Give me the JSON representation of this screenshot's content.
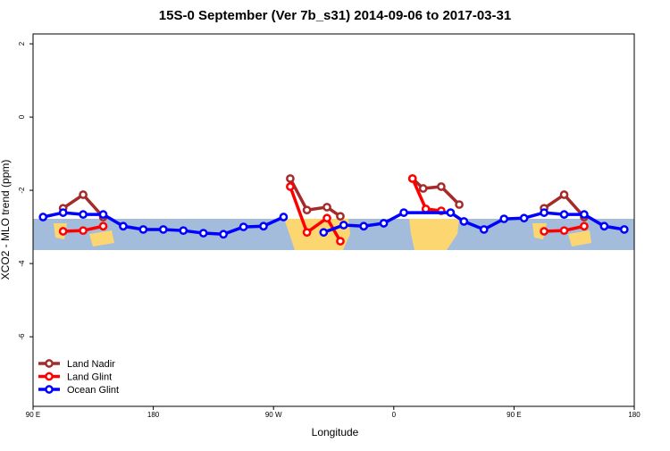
{
  "chart_data": {
    "type": "line",
    "title": "15S-0 September (Ver 7b_s31)   2014-09-06 to 2017-03-31",
    "x_label": "Longitude",
    "y_label": "XCO2 - MLO trend (ppm)",
    "xlim": [
      90,
      540
    ],
    "xticks": [
      {
        "value": 90,
        "label": "90 E"
      },
      180,
      {
        "value": 270,
        "label": "90 W"
      },
      {
        "value": 360,
        "label": "0"
      },
      {
        "value": 450,
        "label": "90 E"
      },
      {
        "value": 540,
        "label": "180"
      }
    ],
    "ylim": [
      -7.9,
      2.27
    ],
    "yticks": [
      2,
      0,
      -2,
      -4,
      -6
    ],
    "legend": "bottom-left",
    "series": [
      {
        "name": "Land Nadir",
        "color": "#a52a2a",
        "x": [
          112.5,
          127.5,
          142.5,
          null,
          282.5,
          295,
          310,
          320,
          null,
          374,
          382,
          395.5,
          409,
          null,
          472.5,
          487.5,
          502.5
        ],
        "values": [
          -2.49,
          -2.12,
          -2.73,
          null,
          -1.68,
          -2.54,
          -2.46,
          -2.71,
          null,
          -1.68,
          -1.95,
          -1.9,
          -2.39,
          null,
          -2.49,
          -2.12,
          -2.73
        ]
      },
      {
        "name": "Land Glint",
        "color": "#ff0000",
        "x": [
          112.5,
          127.5,
          142.5,
          null,
          282.5,
          295,
          310,
          320,
          null,
          374,
          384,
          395.5,
          null,
          472.5,
          487.5,
          502.5
        ],
        "values": [
          -3.12,
          -3.1,
          -2.98,
          null,
          -1.9,
          -3.15,
          -2.76,
          -3.39,
          null,
          -1.68,
          -2.51,
          -2.56,
          null,
          -3.12,
          -3.1,
          -2.98
        ]
      },
      {
        "name": "Ocean Glint",
        "color": "#0000ff",
        "x": [
          97.5,
          112.5,
          127.5,
          142.5,
          157.5,
          172.5,
          187.5,
          202.5,
          217.5,
          232.5,
          247.5,
          262.5,
          277.5,
          null,
          307.5,
          322.5,
          337.5,
          352.5,
          367.5,
          402.5,
          412.5,
          427.5,
          442.5,
          457.5,
          472.5,
          487.5,
          502.5,
          517.5,
          532.5
        ],
        "values": [
          -2.73,
          -2.61,
          -2.66,
          -2.66,
          -2.98,
          -3.07,
          -3.07,
          -3.1,
          -3.17,
          -3.2,
          -3.0,
          -2.98,
          -2.73,
          null,
          -3.15,
          -2.95,
          -2.98,
          -2.9,
          -2.61,
          -2.61,
          -2.85,
          -3.07,
          -2.78,
          -2.76,
          -2.61,
          -2.66,
          -2.66,
          -2.98,
          -3.07
        ]
      }
    ]
  }
}
